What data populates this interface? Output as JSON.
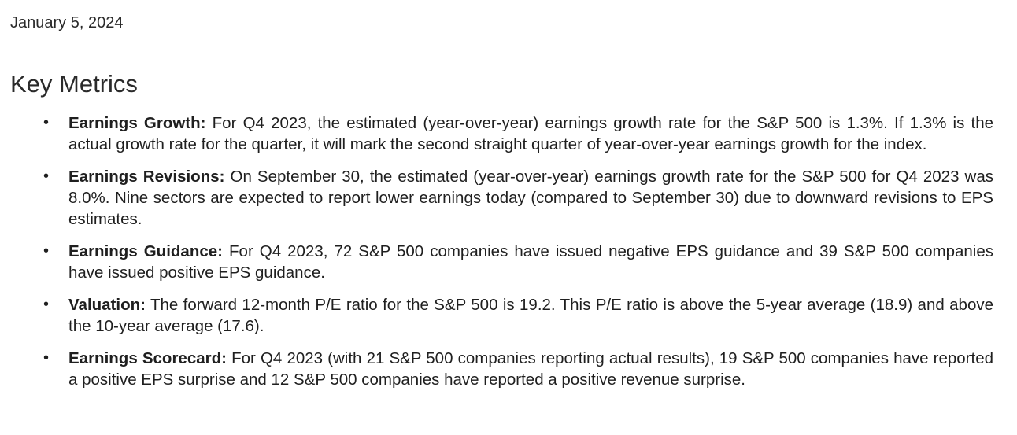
{
  "date": "January 5, 2024",
  "heading": "Key Metrics",
  "bullet_glyph": "•",
  "metrics": [
    {
      "title": "Earnings Growth:",
      "text": "For Q4 2023, the estimated (year-over-year) earnings growth rate for the S&P 500 is 1.3%. If 1.3% is the actual growth rate for the quarter, it will mark the second straight quarter of year-over-year earnings growth for the index."
    },
    {
      "title": "Earnings Revisions:",
      "text": "On September 30, the estimated (year-over-year) earnings growth rate for the S&P 500 for Q4 2023 was 8.0%. Nine sectors are expected to report lower earnings today (compared to September 30) due to downward revisions to EPS estimates."
    },
    {
      "title": "Earnings Guidance:",
      "text": "For Q4 2023, 72 S&P 500 companies have issued negative EPS guidance and 39 S&P 500 companies have issued positive EPS guidance."
    },
    {
      "title": "Valuation:",
      "text": "The forward 12-month P/E ratio for the S&P 500 is 19.2. This P/E ratio is above the 5-year average (18.9) and above the 10-year average (17.6)."
    },
    {
      "title": "Earnings Scorecard:",
      "text": "For Q4 2023 (with 21 S&P 500 companies reporting actual results), 19 S&P 500 companies have reported a positive EPS surprise and 12 S&P 500 companies have reported a positive revenue surprise."
    }
  ]
}
